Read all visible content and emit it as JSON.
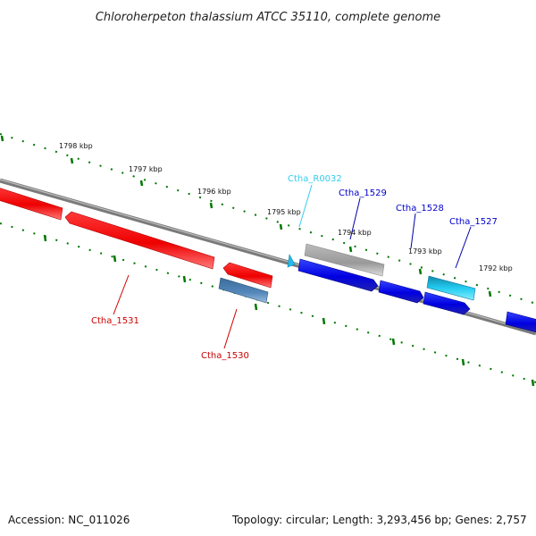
{
  "title": "Chloroherpeton thalassium ATCC 35110, complete genome",
  "footer": {
    "accession": "Accession: NC_011026",
    "summary": "Topology: circular; Length: 3,293,456 bp; Genes: 2,757"
  },
  "ruler_labels": [
    {
      "id": "kbp-1798",
      "text": "1798 kbp"
    },
    {
      "id": "kbp-1797",
      "text": "1797 kbp"
    },
    {
      "id": "kbp-1796",
      "text": "1796 kbp"
    },
    {
      "id": "kbp-1795",
      "text": "1795 kbp"
    },
    {
      "id": "kbp-1794",
      "text": "1794 kbp"
    },
    {
      "id": "kbp-1793",
      "text": "1793 kbp"
    },
    {
      "id": "kbp-1792",
      "text": "1792 kbp"
    }
  ],
  "genes": [
    {
      "id": "Ctha_R0032",
      "label": "Ctha_R0032",
      "color": "#33ccee"
    },
    {
      "id": "Ctha_1529",
      "label": "Ctha_1529",
      "color": "#0000cc"
    },
    {
      "id": "Ctha_1528",
      "label": "Ctha_1528",
      "color": "#0000cc"
    },
    {
      "id": "Ctha_1527",
      "label": "Ctha_1527",
      "color": "#0000cc"
    },
    {
      "id": "Ctha_1531",
      "label": "Ctha_1531",
      "color": "#cc0000"
    },
    {
      "id": "Ctha_1530",
      "label": "Ctha_1530",
      "color": "#cc0000"
    }
  ],
  "colors": {
    "forward_cds": "#0000ee",
    "reverse_cds": "#ee0000",
    "rna": "#22bbee",
    "gray_feature": "#aaaaaa",
    "steel_feature": "#4477aa",
    "backbone": "#808080",
    "ticks": "#007700"
  }
}
